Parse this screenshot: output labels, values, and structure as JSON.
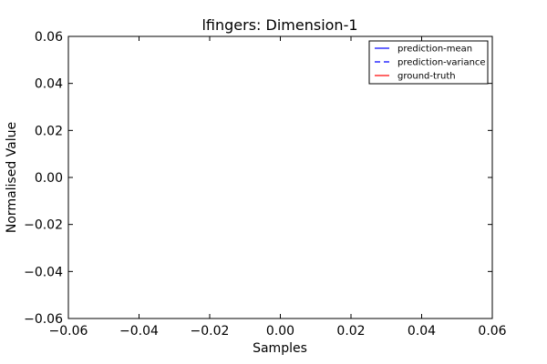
{
  "chart_data": {
    "type": "line",
    "title": "lfingers: Dimension-1",
    "xlabel": "Samples",
    "ylabel": "Normalised Value",
    "xlim": [
      -0.06,
      0.06
    ],
    "ylim": [
      -0.06,
      0.06
    ],
    "x_ticks": [
      "−0.06",
      "−0.04",
      "−0.02",
      "0.00",
      "0.02",
      "0.04",
      "0.06"
    ],
    "y_ticks": [
      "0.06",
      "0.04",
      "0.02",
      "0.00",
      "−0.02",
      "−0.04",
      "−0.06"
    ],
    "grid": false,
    "legend_position": "top-right",
    "series": [
      {
        "name": "prediction-mean",
        "color": "#0000ff",
        "style": "solid",
        "values": []
      },
      {
        "name": "prediction-variance",
        "color": "#0000ff",
        "style": "dashed",
        "values": []
      },
      {
        "name": "ground-truth",
        "color": "#ff0000",
        "style": "solid",
        "values": []
      }
    ]
  }
}
